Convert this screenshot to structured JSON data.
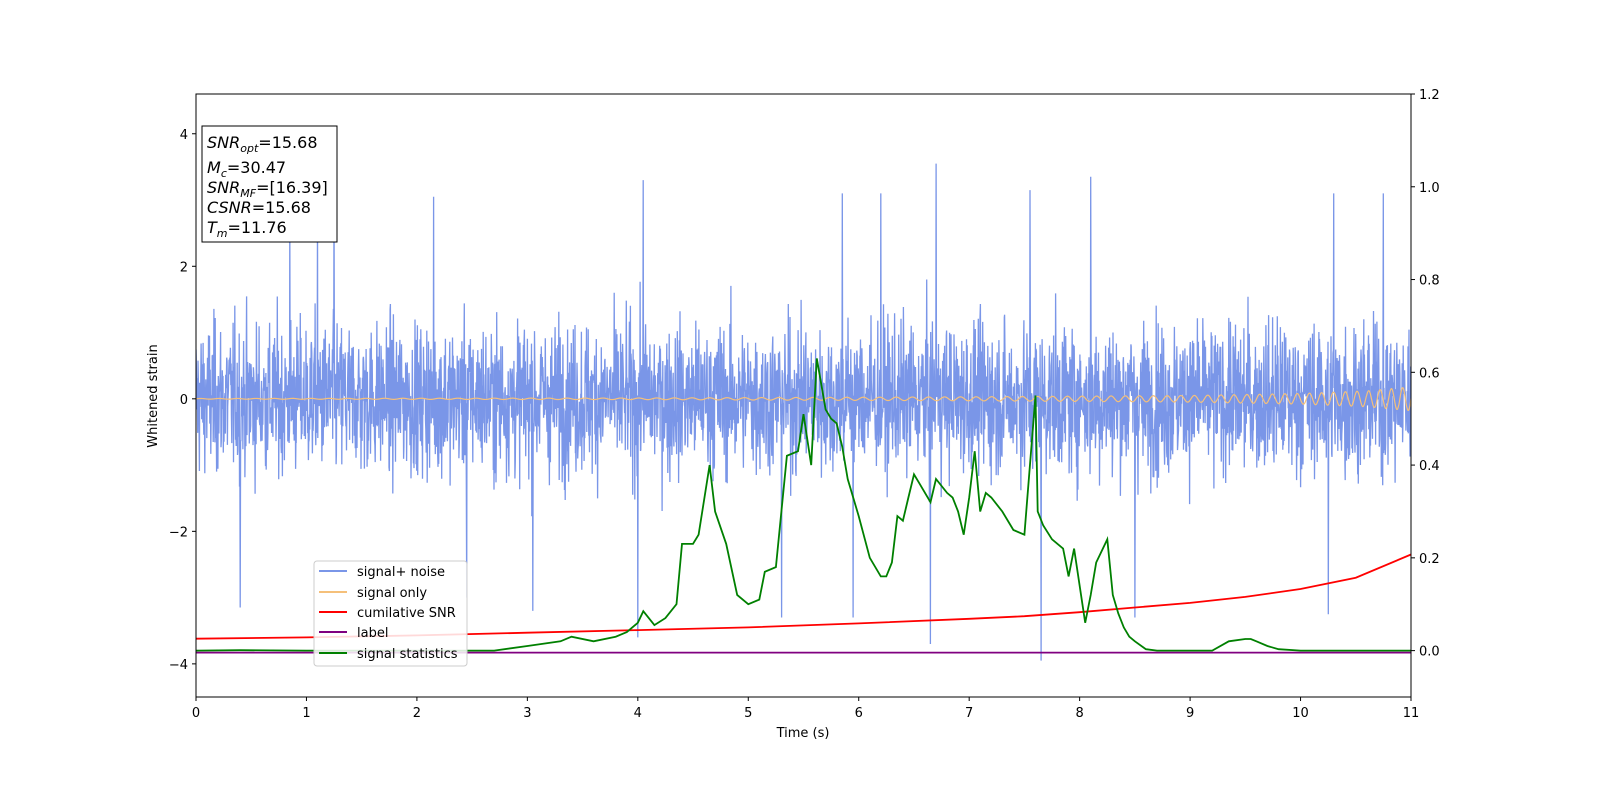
{
  "chart_data": {
    "type": "line",
    "title": "",
    "xlabel": "Time (s)",
    "ylabel": "Whitened strain",
    "xlim": [
      0,
      11
    ],
    "ylim": [
      -4.5,
      4.6
    ],
    "y2lim": [
      -0.1,
      1.2
    ],
    "x_ticks": [
      "0",
      "1",
      "2",
      "3",
      "4",
      "5",
      "6",
      "7",
      "8",
      "9",
      "10",
      "11"
    ],
    "y_ticks": [
      "4",
      "2",
      "0",
      "−2",
      "−4"
    ],
    "y2_ticks": [
      "1.2",
      "1.0",
      "0.8",
      "0.6",
      "0.4",
      "0.2",
      "0.0"
    ],
    "annotation": {
      "snr_opt": {
        "sym": "SNR",
        "sub": "opt",
        "value": "=15.68"
      },
      "mc": {
        "sym": "M",
        "sub": "c",
        "value": "=30.47"
      },
      "snr_mf": {
        "sym": "SNR",
        "sub": "MF",
        "value": "=[16.39]"
      },
      "csnr": {
        "sym": "CSNR",
        "value": "=15.68"
      },
      "tm": {
        "sym": "T",
        "sub": "m",
        "value": "=11.76"
      }
    },
    "legend": {
      "placement": "lower-left",
      "entries": [
        "signal+ noise",
        "signal only",
        "cumilative SNR",
        "label",
        "signal statistics"
      ]
    },
    "colors": {
      "signal_noise": "#7a96e8",
      "signal_only": "#f5c07a",
      "cumulative_snr": "#ff0000",
      "label": "#800080",
      "signal_statistics": "#008000"
    },
    "series": [
      {
        "name": "signal+ noise",
        "axis": "left",
        "description": "whitened strain, noise-dominated, roughly within -3.7 to 3.6",
        "envelope": {
          "typical_low": -2.0,
          "typical_high": 2.0,
          "max": 3.55,
          "min": -3.95
        },
        "spikes": [
          [
            0.4,
            -3.15
          ],
          [
            0.85,
            2.75
          ],
          [
            1.1,
            2.9
          ],
          [
            1.25,
            3.05
          ],
          [
            2.15,
            3.05
          ],
          [
            2.45,
            -3.0
          ],
          [
            3.05,
            -3.2
          ],
          [
            4.0,
            -3.6
          ],
          [
            4.05,
            3.3
          ],
          [
            5.3,
            -3.3
          ],
          [
            5.85,
            3.1
          ],
          [
            5.95,
            -3.3
          ],
          [
            6.2,
            3.1
          ],
          [
            6.65,
            -3.7
          ],
          [
            6.7,
            3.55
          ],
          [
            7.55,
            3.15
          ],
          [
            7.65,
            -3.95
          ],
          [
            8.1,
            3.35
          ],
          [
            8.5,
            -3.3
          ],
          [
            10.25,
            -3.25
          ],
          [
            10.3,
            3.1
          ],
          [
            10.75,
            3.1
          ]
        ]
      },
      {
        "name": "signal only",
        "axis": "left",
        "description": "chirp with amplitude growing toward the end",
        "amplitude": [
          [
            0,
            0.005
          ],
          [
            4,
            0.012
          ],
          [
            7,
            0.03
          ],
          [
            9,
            0.05
          ],
          [
            10,
            0.08
          ],
          [
            10.6,
            0.12
          ],
          [
            11,
            0.18
          ]
        ]
      },
      {
        "name": "cumilative SNR",
        "axis": "left",
        "x": [
          0,
          1,
          2,
          3,
          4,
          5,
          6,
          7,
          7.5,
          8,
          8.5,
          9,
          9.5,
          10,
          10.5,
          11
        ],
        "y": [
          -3.62,
          -3.6,
          -3.57,
          -3.53,
          -3.49,
          -3.45,
          -3.39,
          -3.32,
          -3.28,
          -3.22,
          -3.15,
          -3.08,
          -2.99,
          -2.87,
          -2.7,
          -2.35
        ]
      },
      {
        "name": "label",
        "axis": "left",
        "x": [
          0,
          11
        ],
        "y": [
          -3.83,
          -3.83
        ]
      },
      {
        "name": "signal statistics",
        "axis": "right",
        "x": [
          0,
          0.4,
          1.0,
          2.0,
          2.7,
          3.0,
          3.3,
          3.4,
          3.6,
          3.8,
          3.9,
          4.0,
          4.05,
          4.15,
          4.25,
          4.35,
          4.4,
          4.5,
          4.55,
          4.65,
          4.7,
          4.8,
          4.9,
          5.0,
          5.1,
          5.15,
          5.25,
          5.35,
          5.45,
          5.5,
          5.57,
          5.62,
          5.7,
          5.75,
          5.8,
          5.85,
          5.9,
          6.0,
          6.1,
          6.2,
          6.25,
          6.3,
          6.35,
          6.4,
          6.45,
          6.5,
          6.55,
          6.65,
          6.7,
          6.8,
          6.85,
          6.9,
          6.95,
          7.0,
          7.05,
          7.1,
          7.15,
          7.2,
          7.3,
          7.4,
          7.5,
          7.6,
          7.62,
          7.67,
          7.75,
          7.85,
          7.9,
          7.95,
          8.05,
          8.1,
          8.15,
          8.25,
          8.3,
          8.35,
          8.4,
          8.45,
          8.5,
          8.6,
          8.7,
          9.0,
          9.2,
          9.35,
          9.5,
          9.55,
          9.6,
          9.7,
          9.8,
          10.0,
          10.5,
          11.0
        ],
        "y": [
          0.0,
          0.001,
          0.0,
          0.0,
          0.0,
          0.01,
          0.02,
          0.03,
          0.02,
          0.03,
          0.04,
          0.06,
          0.085,
          0.055,
          0.07,
          0.1,
          0.23,
          0.23,
          0.25,
          0.4,
          0.3,
          0.23,
          0.12,
          0.1,
          0.11,
          0.17,
          0.18,
          0.42,
          0.43,
          0.51,
          0.4,
          0.63,
          0.52,
          0.5,
          0.49,
          0.44,
          0.37,
          0.29,
          0.2,
          0.16,
          0.16,
          0.19,
          0.29,
          0.28,
          0.33,
          0.38,
          0.36,
          0.32,
          0.37,
          0.34,
          0.33,
          0.3,
          0.25,
          0.33,
          0.43,
          0.3,
          0.34,
          0.33,
          0.3,
          0.26,
          0.25,
          0.55,
          0.3,
          0.27,
          0.24,
          0.22,
          0.16,
          0.22,
          0.06,
          0.12,
          0.19,
          0.24,
          0.12,
          0.08,
          0.05,
          0.03,
          0.02,
          0.003,
          0.0,
          0.0,
          0.0,
          0.02,
          0.025,
          0.025,
          0.02,
          0.01,
          0.003,
          0.0,
          0.0,
          0.0
        ]
      }
    ]
  }
}
